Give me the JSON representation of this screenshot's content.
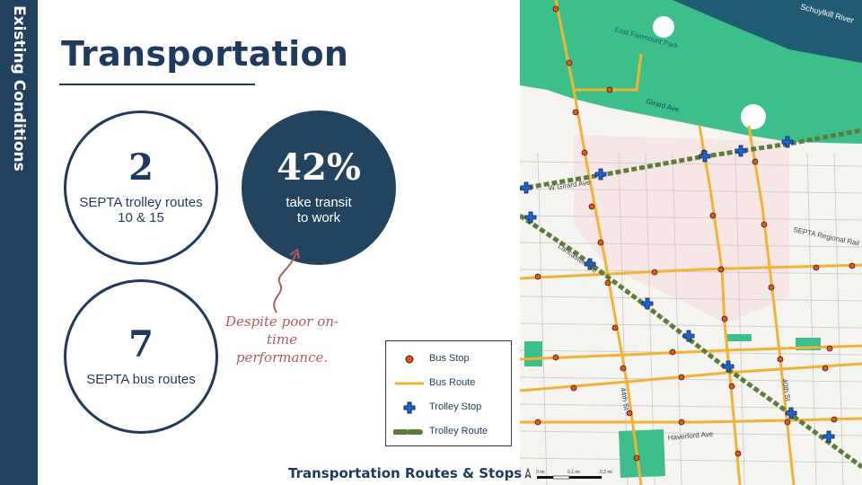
{
  "sidebar": {
    "label": "Existing Conditions"
  },
  "page_title": "Transportation",
  "stats": [
    {
      "value": "2",
      "label": "SEPTA trolley routes\n10 & 15"
    },
    {
      "value": "42%",
      "label": "take transit\nto work"
    },
    {
      "value": "7",
      "label": "SEPTA bus routes"
    }
  ],
  "annotation": "Despite poor on-time performance.",
  "map": {
    "caption": "Transportation Routes & Stops",
    "labels": {
      "river": "Schuylkill River",
      "park": "East Fairmount Park",
      "girard_north": "Girard Ave",
      "girard": "W Girard Ave",
      "lancaster": "Lancaster Ave",
      "regional_rail": "SEPTA Regional Rail",
      "st_44": "44th St",
      "st_40": "40th St",
      "haverford": "Haverford Ave"
    },
    "legend": {
      "bus_stop": "Bus Stop",
      "bus_route": "Bus Route",
      "trolley_stop": "Trolley Stop",
      "trolley_route": "Trolley Route"
    },
    "scale": {
      "start": "0 mi",
      "mid": "0.1 mi",
      "end": "0.2 mi"
    },
    "colors": {
      "park": "#3dbf8c",
      "river": "#1f5b73",
      "bus_route": "#f2b233",
      "bus_stop": "#e2571f",
      "trolley_route": "#5b7d3a",
      "trolley_stop": "#1e64d6",
      "highlight_area": "#f7e6e6"
    }
  }
}
